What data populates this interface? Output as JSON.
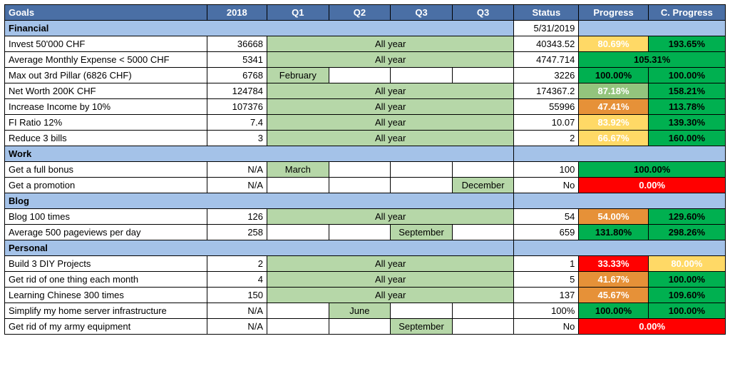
{
  "colors": {
    "header_bg": "#4a6fa5",
    "section_bg": "#a4c2e8",
    "allyear_bg": "#b6d7a8",
    "green": "#00b050",
    "light_green": "#93c47d",
    "yellow": "#ffd966",
    "orange": "#e69138",
    "red": "#ff0000",
    "white_text": "#ffffff",
    "black_text": "#000000"
  },
  "col_widths": {
    "goals": "262px",
    "y2018": "78px",
    "q": "80px",
    "status": "84px",
    "progress": "90px",
    "cprogress": "100px"
  },
  "headers": {
    "goals": "Goals",
    "y2018": "2018",
    "q1": "Q1",
    "q2": "Q2",
    "q3a": "Q3",
    "q3b": "Q3",
    "status": "Status",
    "progress": "Progress",
    "cprogress": "C. Progress"
  },
  "status_date": "5/31/2019",
  "sections": [
    {
      "name": "Financial",
      "show_date": true,
      "rows": [
        {
          "goal": "Invest 50'000 CHF",
          "y2018": "36668",
          "quarters": {
            "type": "allyear",
            "label": "All year"
          },
          "status": "40343.52",
          "progress": {
            "val": "80.69%",
            "bg": "#ffd966",
            "fg": "#ffffff"
          },
          "cprogress": {
            "val": "193.65%",
            "bg": "#00b050",
            "fg": "#000000"
          }
        },
        {
          "goal": "Average Monthly Expense < 5000 CHF",
          "y2018": "5341",
          "quarters": {
            "type": "allyear",
            "label": "All year"
          },
          "status": "4747.714",
          "progress_merged": {
            "val": "105.31%",
            "bg": "#00b050",
            "fg": "#000000"
          }
        },
        {
          "goal": "Max out 3rd Pillar (6826 CHF)",
          "y2018": "6768",
          "quarters": {
            "type": "cells",
            "cells": [
              "February",
              "",
              "",
              ""
            ],
            "bg": [
              "#b6d7a8",
              "",
              "",
              ""
            ]
          },
          "status": "3226",
          "progress": {
            "val": "100.00%",
            "bg": "#00b050",
            "fg": "#000000"
          },
          "cprogress": {
            "val": "100.00%",
            "bg": "#00b050",
            "fg": "#000000"
          }
        },
        {
          "goal": "Net Worth 200K CHF",
          "y2018": "124784",
          "quarters": {
            "type": "allyear",
            "label": "All year"
          },
          "status": "174367.2",
          "progress": {
            "val": "87.18%",
            "bg": "#93c47d",
            "fg": "#ffffff"
          },
          "cprogress": {
            "val": "158.21%",
            "bg": "#00b050",
            "fg": "#000000"
          }
        },
        {
          "goal": "Increase Income by 10%",
          "y2018": "107376",
          "quarters": {
            "type": "allyear",
            "label": "All year"
          },
          "status": "55996",
          "progress": {
            "val": "47.41%",
            "bg": "#e69138",
            "fg": "#ffffff"
          },
          "cprogress": {
            "val": "113.78%",
            "bg": "#00b050",
            "fg": "#000000"
          }
        },
        {
          "goal": "FI Ratio 12%",
          "y2018": "7.4",
          "quarters": {
            "type": "allyear",
            "label": "All year"
          },
          "status": "10.07",
          "progress": {
            "val": "83.92%",
            "bg": "#ffd966",
            "fg": "#ffffff"
          },
          "cprogress": {
            "val": "139.30%",
            "bg": "#00b050",
            "fg": "#000000"
          }
        },
        {
          "goal": "Reduce 3 bills",
          "y2018": "3",
          "quarters": {
            "type": "allyear",
            "label": "All year"
          },
          "status": "2",
          "progress": {
            "val": "66.67%",
            "bg": "#ffd966",
            "fg": "#ffffff"
          },
          "cprogress": {
            "val": "160.00%",
            "bg": "#00b050",
            "fg": "#000000"
          }
        }
      ]
    },
    {
      "name": "Work",
      "rows": [
        {
          "goal": "Get a full bonus",
          "y2018": "N/A",
          "quarters": {
            "type": "cells",
            "cells": [
              "March",
              "",
              "",
              ""
            ],
            "bg": [
              "#b6d7a8",
              "",
              "",
              ""
            ]
          },
          "status": "100",
          "progress_merged": {
            "val": "100.00%",
            "bg": "#00b050",
            "fg": "#000000"
          }
        },
        {
          "goal": "Get a promotion",
          "y2018": "N/A",
          "quarters": {
            "type": "cells",
            "cells": [
              "",
              "",
              "",
              "December"
            ],
            "bg": [
              "",
              "",
              "",
              "#b6d7a8"
            ]
          },
          "status": "No",
          "progress_merged": {
            "val": "0.00%",
            "bg": "#ff0000",
            "fg": "#ffffff"
          }
        }
      ]
    },
    {
      "name": "Blog",
      "rows": [
        {
          "goal": "Blog 100 times",
          "y2018": "126",
          "quarters": {
            "type": "allyear",
            "label": "All year"
          },
          "status": "54",
          "progress": {
            "val": "54.00%",
            "bg": "#e69138",
            "fg": "#ffffff"
          },
          "cprogress": {
            "val": "129.60%",
            "bg": "#00b050",
            "fg": "#000000"
          }
        },
        {
          "goal": "Average 500 pageviews per day",
          "y2018": "258",
          "quarters": {
            "type": "cells",
            "cells": [
              "",
              "",
              "September",
              ""
            ],
            "bg": [
              "",
              "",
              "#b6d7a8",
              ""
            ]
          },
          "status": "659",
          "progress": {
            "val": "131.80%",
            "bg": "#00b050",
            "fg": "#000000"
          },
          "cprogress": {
            "val": "298.26%",
            "bg": "#00b050",
            "fg": "#000000"
          }
        }
      ]
    },
    {
      "name": "Personal",
      "rows": [
        {
          "goal": "Build 3 DIY Projects",
          "y2018": "2",
          "quarters": {
            "type": "allyear",
            "label": "All year"
          },
          "status": "1",
          "progress": {
            "val": "33.33%",
            "bg": "#ff0000",
            "fg": "#ffffff"
          },
          "cprogress": {
            "val": "80.00%",
            "bg": "#ffd966",
            "fg": "#ffffff"
          }
        },
        {
          "goal": "Get rid of one thing each month",
          "y2018": "4",
          "quarters": {
            "type": "allyear",
            "label": "All year"
          },
          "status": "5",
          "progress": {
            "val": "41.67%",
            "bg": "#e69138",
            "fg": "#ffffff"
          },
          "cprogress": {
            "val": "100.00%",
            "bg": "#00b050",
            "fg": "#000000"
          }
        },
        {
          "goal": "Learning Chinese 300 times",
          "y2018": "150",
          "quarters": {
            "type": "allyear",
            "label": "All year"
          },
          "status": "137",
          "progress": {
            "val": "45.67%",
            "bg": "#e69138",
            "fg": "#ffffff"
          },
          "cprogress": {
            "val": "109.60%",
            "bg": "#00b050",
            "fg": "#000000"
          }
        },
        {
          "goal": "Simplify my home server infrastructure",
          "y2018": "N/A",
          "quarters": {
            "type": "cells",
            "cells": [
              "",
              "June",
              "",
              ""
            ],
            "bg": [
              "",
              "#b6d7a8",
              "",
              ""
            ]
          },
          "status": "100%",
          "progress": {
            "val": "100.00%",
            "bg": "#00b050",
            "fg": "#000000"
          },
          "cprogress": {
            "val": "100.00%",
            "bg": "#00b050",
            "fg": "#000000"
          }
        },
        {
          "goal": "Get rid of my army equipment",
          "y2018": "N/A",
          "quarters": {
            "type": "cells",
            "cells": [
              "",
              "",
              "September",
              ""
            ],
            "bg": [
              "",
              "",
              "#b6d7a8",
              ""
            ]
          },
          "status": "No",
          "progress_merged": {
            "val": "0.00%",
            "bg": "#ff0000",
            "fg": "#ffffff"
          }
        }
      ]
    }
  ]
}
